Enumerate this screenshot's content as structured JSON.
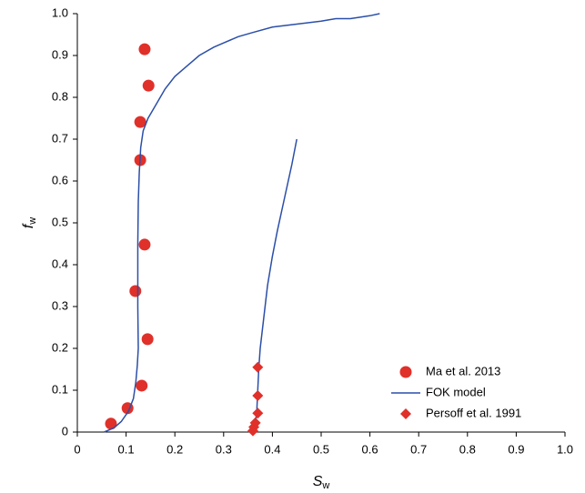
{
  "chart_data": {
    "type": "scatter",
    "xlabel": [
      "S",
      "w"
    ],
    "ylabel": [
      "f",
      "w"
    ],
    "xlim": [
      0,
      1
    ],
    "ylim": [
      0,
      1
    ],
    "xticks": [
      0,
      0.1,
      0.2,
      0.3,
      0.4,
      0.5,
      0.6,
      0.7,
      0.8,
      0.9,
      {
        "value": 1,
        "label": "1.0"
      }
    ],
    "yticks": [
      0,
      0.1,
      0.2,
      0.3,
      0.4,
      0.5,
      0.6,
      0.7,
      0.8,
      0.9,
      {
        "value": 1,
        "label": "1.0"
      }
    ],
    "legend": "lower right",
    "series": [
      {
        "name": "Ma et al. 2013",
        "color": "#e0302a",
        "marker": "circle",
        "x": [
          0.069,
          0.103,
          0.132,
          0.144,
          0.138,
          0.119,
          0.129,
          0.129,
          0.146,
          0.138
        ],
        "values": [
          0.02,
          0.057,
          0.111,
          0.222,
          0.448,
          0.337,
          0.65,
          0.741,
          0.828,
          0.915
        ]
      },
      {
        "name": "FOK model",
        "color": "#2b4fa8",
        "marker": "line",
        "x": [
          0.055,
          0.075,
          0.09,
          0.105,
          0.115,
          0.12,
          0.123,
          0.125,
          0.124,
          0.124,
          0.125,
          0.127,
          0.13,
          0.135,
          0.145,
          0.16,
          0.18,
          0.2,
          0.22,
          0.25,
          0.28,
          0.3,
          0.33,
          0.36,
          0.4,
          0.45,
          0.5,
          0.53,
          0.56,
          0.6,
          0.62,
          null,
          0.36,
          0.365,
          0.368,
          0.37,
          0.372,
          0.375,
          0.38,
          0.385,
          0.39,
          0.4,
          0.41,
          0.425,
          0.44,
          0.45
        ],
        "values": [
          0,
          0.01,
          0.025,
          0.05,
          0.08,
          0.12,
          0.16,
          0.2,
          0.3,
          0.45,
          0.55,
          0.62,
          0.68,
          0.72,
          0.75,
          0.78,
          0.82,
          0.85,
          0.87,
          0.9,
          0.92,
          0.93,
          0.945,
          0.955,
          0.968,
          0.975,
          0.982,
          0.988,
          0.988,
          0.995,
          1,
          null,
          0,
          0.02,
          0.05,
          0.1,
          0.15,
          0.2,
          0.25,
          0.3,
          0.35,
          0.42,
          0.48,
          0.56,
          0.64,
          0.7
        ]
      },
      {
        "name": "Persoff et al. 1991",
        "color": "#e0302a",
        "marker": "diamond",
        "x": [
          0.36,
          0.362,
          0.365,
          0.37,
          0.37,
          0.37
        ],
        "values": [
          0.003,
          0.012,
          0.022,
          0.045,
          0.087,
          0.155
        ]
      }
    ]
  }
}
